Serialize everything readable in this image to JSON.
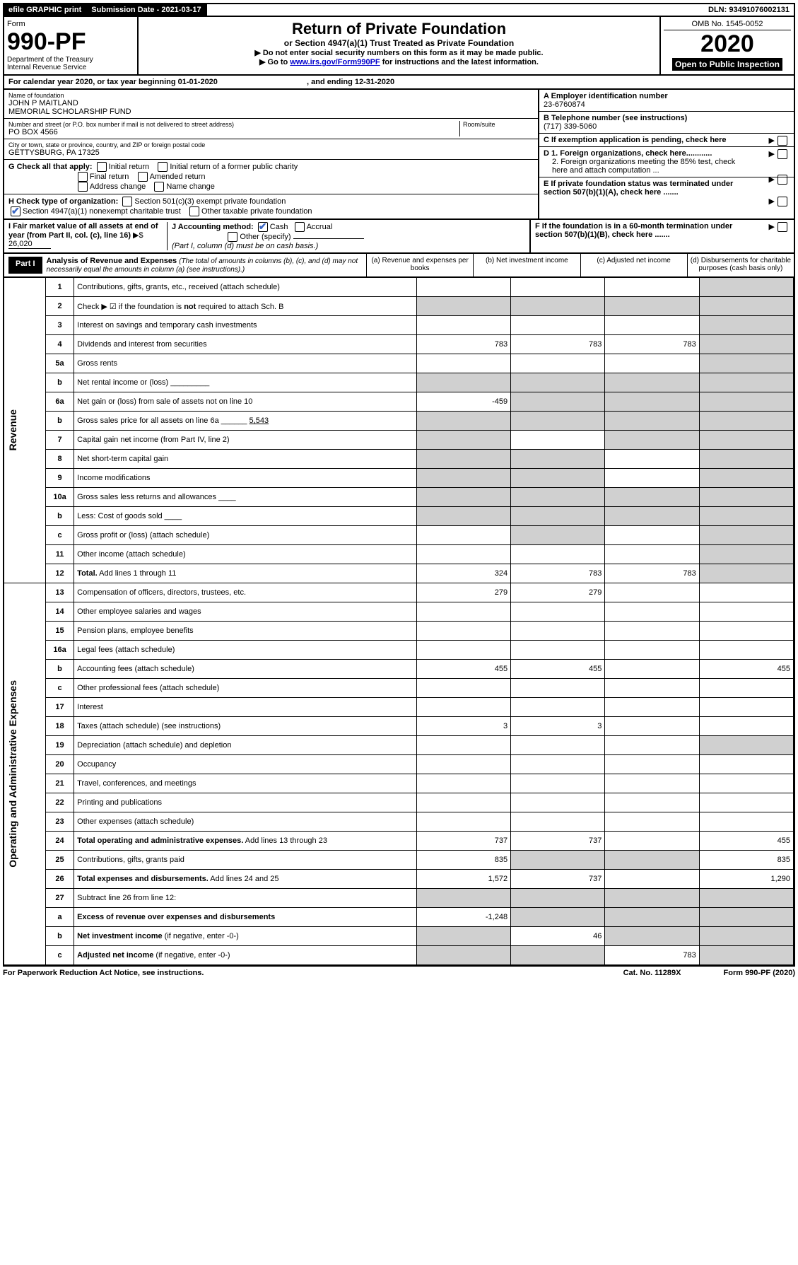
{
  "topbar": {
    "efile": "efile GRAPHIC print",
    "subdate_label": "Submission Date - ",
    "subdate": "2021-03-17",
    "dln_label": "DLN: ",
    "dln": "93491076002131"
  },
  "header": {
    "form_label": "Form",
    "form_num": "990-PF",
    "dept": "Department of the Treasury",
    "irs": "Internal Revenue Service",
    "title": "Return of Private Foundation",
    "subtitle": "or Section 4947(a)(1) Trust Treated as Private Foundation",
    "note1": "Do not enter social security numbers on this form as it may be made public.",
    "note2_pre": "Go to ",
    "note2_link": "www.irs.gov/Form990PF",
    "note2_post": " for instructions and the latest information.",
    "omb": "OMB No. 1545-0052",
    "year": "2020",
    "open": "Open to Public Inspection"
  },
  "info": {
    "calendar": "For calendar year 2020, or tax year beginning 01-01-2020",
    "ending": ", and ending 12-31-2020"
  },
  "meta": {
    "name_label": "Name of foundation",
    "name": "JOHN P MAITLAND\nMEMORIAL SCHOLARSHIP FUND",
    "addr_label": "Number and street (or P.O. box number if mail is not delivered to street address)",
    "room_label": "Room/suite",
    "addr": "PO BOX 4566",
    "city_label": "City or town, state or province, country, and ZIP or foreign postal code",
    "city": "GETTYSBURG, PA  17325",
    "ein_label": "A Employer identification number",
    "ein": "23-6760874",
    "tel_label": "B Telephone number (see instructions)",
    "tel": "(717) 339-5060",
    "c_label": "C If exemption application is pending, check here",
    "d1": "D 1. Foreign organizations, check here............",
    "d2": "2. Foreign organizations meeting the 85% test, check here and attach computation ...",
    "e": "E  If private foundation status was terminated under section 507(b)(1)(A), check here .......",
    "f": "F  If the foundation is in a 60-month termination under section 507(b)(1)(B), check here .......",
    "g_label": "G Check all that apply:",
    "g_opts": [
      "Initial return",
      "Initial return of a former public charity",
      "Final return",
      "Amended return",
      "Address change",
      "Name change"
    ],
    "h_label": "H Check type of organization:",
    "h_opts": [
      "Section 501(c)(3) exempt private foundation",
      "Section 4947(a)(1) nonexempt charitable trust",
      "Other taxable private foundation"
    ],
    "i_label": "I Fair market value of all assets at end of year (from Part II, col. (c), line 16)",
    "i_val": "26,020",
    "j_label": "J Accounting method:",
    "j_cash": "Cash",
    "j_accrual": "Accrual",
    "j_other": "Other (specify)",
    "j_note": "(Part I, column (d) must be on cash basis.)"
  },
  "part1": {
    "tab": "Part I",
    "title": "Analysis of Revenue and Expenses",
    "subtitle": "(The total of amounts in columns (b), (c), and (d) may not necessarily equal the amounts in column (a) (see instructions).)",
    "cols": {
      "a": "(a)   Revenue and expenses per books",
      "b": "(b)  Net investment income",
      "c": "(c)  Adjusted net income",
      "d": "(d)  Disbursements for charitable purposes (cash basis only)"
    },
    "revenue_label": "Revenue",
    "expenses_label": "Operating and Administrative Expenses"
  },
  "rows": [
    {
      "n": "1",
      "d": "Contributions, gifts, grants, etc., received (attach schedule)",
      "a": "",
      "b": "",
      "c": "",
      "dS": "s"
    },
    {
      "n": "2",
      "d": "Check ▶ ☑ if the foundation is <b>not</b> required to attach Sch. B",
      "a": "",
      "b": "",
      "c": "",
      "dS": "s",
      "aS": "s",
      "bS": "s",
      "cS": "s"
    },
    {
      "n": "3",
      "d": "Interest on savings and temporary cash investments",
      "a": "",
      "b": "",
      "c": "",
      "dS": "s"
    },
    {
      "n": "4",
      "d": "Dividends and interest from securities",
      "a": "783",
      "b": "783",
      "c": "783",
      "dS": "s"
    },
    {
      "n": "5a",
      "d": "Gross rents",
      "a": "",
      "b": "",
      "c": "",
      "dS": "s"
    },
    {
      "n": "b",
      "d": "Net rental income or (loss)  _________",
      "aS": "s",
      "bS": "s",
      "cS": "s",
      "dS": "s"
    },
    {
      "n": "6a",
      "d": "Net gain or (loss) from sale of assets not on line 10",
      "a": "-459",
      "bS": "s",
      "cS": "s",
      "dS": "s"
    },
    {
      "n": "b",
      "d": "Gross sales price for all assets on line 6a ______ <u>5,543</u>",
      "aS": "s",
      "bS": "s",
      "cS": "s",
      "dS": "s"
    },
    {
      "n": "7",
      "d": "Capital gain net income (from Part IV, line 2)",
      "aS": "s",
      "b": "",
      "cS": "s",
      "dS": "s"
    },
    {
      "n": "8",
      "d": "Net short-term capital gain",
      "aS": "s",
      "bS": "s",
      "c": "",
      "dS": "s"
    },
    {
      "n": "9",
      "d": "Income modifications",
      "aS": "s",
      "bS": "s",
      "c": "",
      "dS": "s"
    },
    {
      "n": "10a",
      "d": "Gross sales less returns and allowances  ____",
      "aS": "s",
      "bS": "s",
      "cS": "s",
      "dS": "s"
    },
    {
      "n": "b",
      "d": "Less: Cost of goods sold   ____",
      "aS": "s",
      "bS": "s",
      "cS": "s",
      "dS": "s"
    },
    {
      "n": "c",
      "d": "Gross profit or (loss) (attach schedule)",
      "a": "",
      "bS": "s",
      "c": "",
      "dS": "s"
    },
    {
      "n": "11",
      "d": "Other income (attach schedule)",
      "a": "",
      "b": "",
      "c": "",
      "dS": "s"
    },
    {
      "n": "12",
      "d": "<b>Total.</b> Add lines 1 through 11",
      "a": "324",
      "b": "783",
      "c": "783",
      "dS": "s"
    },
    {
      "n": "13",
      "d": "Compensation of officers, directors, trustees, etc.",
      "a": "279",
      "b": "279",
      "c": "",
      "dV": ""
    },
    {
      "n": "14",
      "d": "Other employee salaries and wages",
      "a": "",
      "b": "",
      "c": "",
      "dV": ""
    },
    {
      "n": "15",
      "d": "Pension plans, employee benefits",
      "a": "",
      "b": "",
      "c": "",
      "dV": ""
    },
    {
      "n": "16a",
      "d": "Legal fees (attach schedule)",
      "a": "",
      "b": "",
      "c": "",
      "dV": ""
    },
    {
      "n": "b",
      "d": "Accounting fees (attach schedule)",
      "a": "455",
      "b": "455",
      "c": "",
      "dV": "455"
    },
    {
      "n": "c",
      "d": "Other professional fees (attach schedule)",
      "a": "",
      "b": "",
      "c": "",
      "dV": ""
    },
    {
      "n": "17",
      "d": "Interest",
      "a": "",
      "b": "",
      "c": "",
      "dV": ""
    },
    {
      "n": "18",
      "d": "Taxes (attach schedule) (see instructions)",
      "a": "3",
      "b": "3",
      "c": "",
      "dV": ""
    },
    {
      "n": "19",
      "d": "Depreciation (attach schedule) and depletion",
      "a": "",
      "b": "",
      "c": "",
      "dS": "s"
    },
    {
      "n": "20",
      "d": "Occupancy",
      "a": "",
      "b": "",
      "c": "",
      "dV": ""
    },
    {
      "n": "21",
      "d": "Travel, conferences, and meetings",
      "a": "",
      "b": "",
      "c": "",
      "dV": ""
    },
    {
      "n": "22",
      "d": "Printing and publications",
      "a": "",
      "b": "",
      "c": "",
      "dV": ""
    },
    {
      "n": "23",
      "d": "Other expenses (attach schedule)",
      "a": "",
      "b": "",
      "c": "",
      "dV": ""
    },
    {
      "n": "24",
      "d": "<b>Total operating and administrative expenses.</b> Add lines 13 through 23",
      "a": "737",
      "b": "737",
      "c": "",
      "dV": "455"
    },
    {
      "n": "25",
      "d": "Contributions, gifts, grants paid",
      "a": "835",
      "bS": "s",
      "cS": "s",
      "dV": "835"
    },
    {
      "n": "26",
      "d": "<b>Total expenses and disbursements.</b> Add lines 24 and 25",
      "a": "1,572",
      "b": "737",
      "c": "",
      "dV": "1,290"
    },
    {
      "n": "27",
      "d": "Subtract line 26 from line 12:",
      "aS": "s",
      "bS": "s",
      "cS": "s",
      "dS": "s"
    },
    {
      "n": "a",
      "d": "<b>Excess of revenue over expenses and disbursements</b>",
      "a": "-1,248",
      "bS": "s",
      "cS": "s",
      "dS": "s"
    },
    {
      "n": "b",
      "d": "<b>Net investment income</b> (if negative, enter -0-)",
      "aS": "s",
      "b": "46",
      "cS": "s",
      "dS": "s"
    },
    {
      "n": "c",
      "d": "<b>Adjusted net income</b> (if negative, enter -0-)",
      "aS": "s",
      "bS": "s",
      "c": "783",
      "dS": "s"
    }
  ],
  "footer": {
    "left": "For Paperwork Reduction Act Notice, see instructions.",
    "mid": "Cat. No. 11289X",
    "right": "Form 990-PF (2020)"
  },
  "colors": {
    "shade": "#d0d0d0",
    "check": "#3a66c4"
  }
}
